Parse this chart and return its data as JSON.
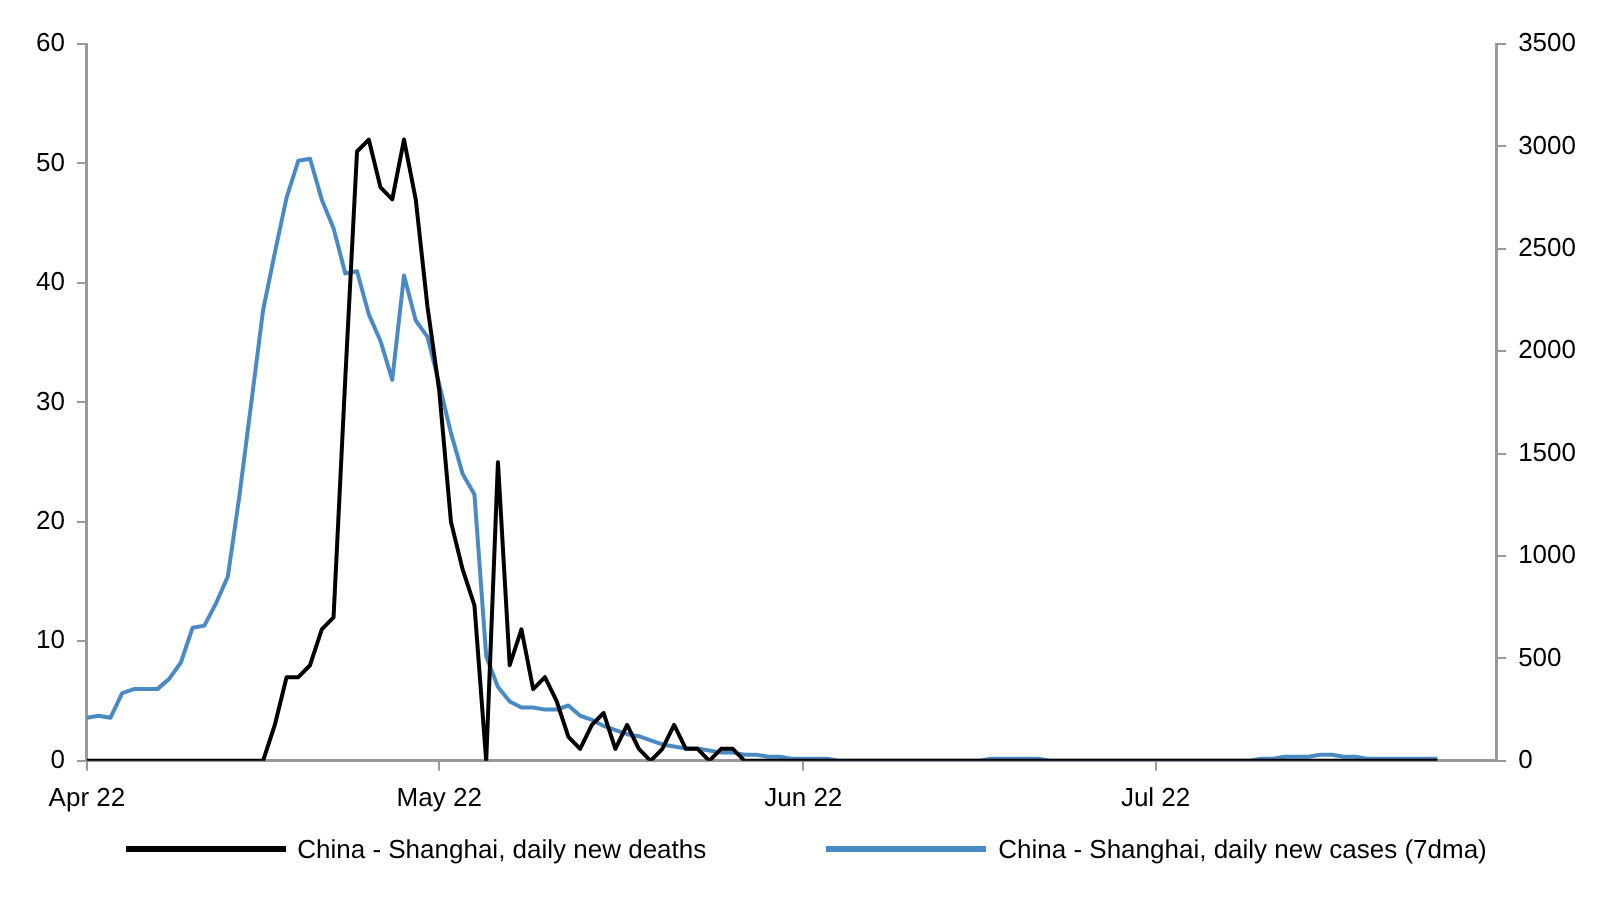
{
  "chart_data": {
    "type": "line",
    "x": [
      "2022-04-01",
      "2022-04-02",
      "2022-04-03",
      "2022-04-04",
      "2022-04-05",
      "2022-04-06",
      "2022-04-07",
      "2022-04-08",
      "2022-04-09",
      "2022-04-10",
      "2022-04-11",
      "2022-04-12",
      "2022-04-13",
      "2022-04-14",
      "2022-04-15",
      "2022-04-16",
      "2022-04-17",
      "2022-04-18",
      "2022-04-19",
      "2022-04-20",
      "2022-04-21",
      "2022-04-22",
      "2022-04-23",
      "2022-04-24",
      "2022-04-25",
      "2022-04-26",
      "2022-04-27",
      "2022-04-28",
      "2022-04-29",
      "2022-04-30",
      "2022-05-01",
      "2022-05-02",
      "2022-05-03",
      "2022-05-04",
      "2022-05-05",
      "2022-05-06",
      "2022-05-07",
      "2022-05-08",
      "2022-05-09",
      "2022-05-10",
      "2022-05-11",
      "2022-05-12",
      "2022-05-13",
      "2022-05-14",
      "2022-05-15",
      "2022-05-16",
      "2022-05-17",
      "2022-05-18",
      "2022-05-19",
      "2022-05-20",
      "2022-05-21",
      "2022-05-22",
      "2022-05-23",
      "2022-05-24",
      "2022-05-25",
      "2022-05-26",
      "2022-05-27",
      "2022-05-28",
      "2022-05-29",
      "2022-05-30",
      "2022-05-31",
      "2022-06-01",
      "2022-06-02",
      "2022-06-03",
      "2022-06-04",
      "2022-06-05",
      "2022-06-06",
      "2022-06-07",
      "2022-06-08",
      "2022-06-09",
      "2022-06-10",
      "2022-06-11",
      "2022-06-12",
      "2022-06-13",
      "2022-06-14",
      "2022-06-15",
      "2022-06-16",
      "2022-06-17",
      "2022-06-18",
      "2022-06-19",
      "2022-06-20",
      "2022-06-21",
      "2022-06-22",
      "2022-06-23",
      "2022-06-24",
      "2022-06-25",
      "2022-06-26",
      "2022-06-27",
      "2022-06-28",
      "2022-06-29",
      "2022-06-30",
      "2022-07-01",
      "2022-07-02",
      "2022-07-03",
      "2022-07-04",
      "2022-07-05",
      "2022-07-06",
      "2022-07-07",
      "2022-07-08",
      "2022-07-09",
      "2022-07-10",
      "2022-07-11",
      "2022-07-12",
      "2022-07-13",
      "2022-07-14",
      "2022-07-15",
      "2022-07-16",
      "2022-07-17",
      "2022-07-18",
      "2022-07-19",
      "2022-07-20",
      "2022-07-21",
      "2022-07-22",
      "2022-07-23",
      "2022-07-24",
      "2022-07-25"
    ],
    "series": [
      {
        "name": "China - Shanghai, daily new deaths",
        "color": "#000000",
        "values": [
          0,
          0,
          0,
          0,
          0,
          0,
          0,
          0,
          0,
          0,
          0,
          0,
          0,
          0,
          0,
          0,
          3,
          7,
          7,
          8,
          11,
          12,
          32,
          51,
          52,
          48,
          47,
          52,
          47,
          38,
          31,
          20,
          16,
          13,
          0,
          25,
          8,
          11,
          6,
          7,
          5,
          2,
          1,
          3,
          4,
          1,
          3,
          1,
          0,
          1,
          3,
          1,
          1,
          0,
          1,
          1,
          0,
          0,
          0,
          0,
          0,
          0,
          0,
          0,
          0,
          0,
          0,
          0,
          0,
          0,
          0,
          0,
          0,
          0,
          0,
          0,
          0,
          0,
          0,
          0,
          0,
          0,
          0,
          0,
          0,
          0,
          0,
          0,
          0,
          0,
          0,
          0,
          0,
          0,
          0,
          0,
          0,
          0,
          0,
          0,
          0,
          0,
          0,
          0,
          0,
          0,
          0,
          0,
          0,
          0,
          0,
          0,
          0,
          0,
          0,
          0
        ]
      },
      {
        "name": "China - Shanghai, daily new cases (7dma)",
        "color": "#4a8ac4",
        "axis": "y2",
        "values": [
          210,
          220,
          210,
          330,
          350,
          350,
          350,
          400,
          480,
          650,
          660,
          770,
          900,
          1300,
          1750,
          2200,
          2480,
          2750,
          2930,
          2940,
          2740,
          2600,
          2380,
          2390,
          2180,
          2050,
          1860,
          2370,
          2150,
          2070,
          1840,
          1600,
          1400,
          1300,
          510,
          360,
          290,
          260,
          260,
          250,
          250,
          270,
          220,
          200,
          170,
          150,
          130,
          120,
          100,
          80,
          70,
          60,
          60,
          50,
          40,
          40,
          30,
          30,
          20,
          20,
          10,
          10,
          10,
          10,
          0,
          0,
          0,
          0,
          0,
          0,
          0,
          0,
          0,
          0,
          0,
          0,
          0,
          10,
          10,
          10,
          10,
          10,
          0,
          0,
          0,
          0,
          0,
          0,
          0,
          0,
          0,
          0,
          0,
          0,
          0,
          0,
          0,
          0,
          0,
          0,
          10,
          10,
          20,
          20,
          20,
          30,
          30,
          20,
          20,
          10,
          10,
          10,
          10,
          10,
          10,
          10
        ]
      }
    ],
    "xlim": [
      "2022-04-01",
      "2022-07-30"
    ],
    "xticks": [
      {
        "value": "2022-04-01",
        "label": "Apr 22"
      },
      {
        "value": "2022-05-01",
        "label": "May 22"
      },
      {
        "value": "2022-06-01",
        "label": "Jun 22"
      },
      {
        "value": "2022-07-01",
        "label": "Jul 22"
      }
    ],
    "ylim": [
      0,
      60
    ],
    "yticks": [
      0,
      10,
      20,
      30,
      40,
      50,
      60
    ],
    "y2lim": [
      0,
      3500
    ],
    "y2ticks": [
      0,
      500,
      1000,
      1500,
      2000,
      2500,
      3000,
      3500
    ],
    "legend": "bottom",
    "grid": false,
    "marker": "none",
    "line_style": "solid"
  }
}
